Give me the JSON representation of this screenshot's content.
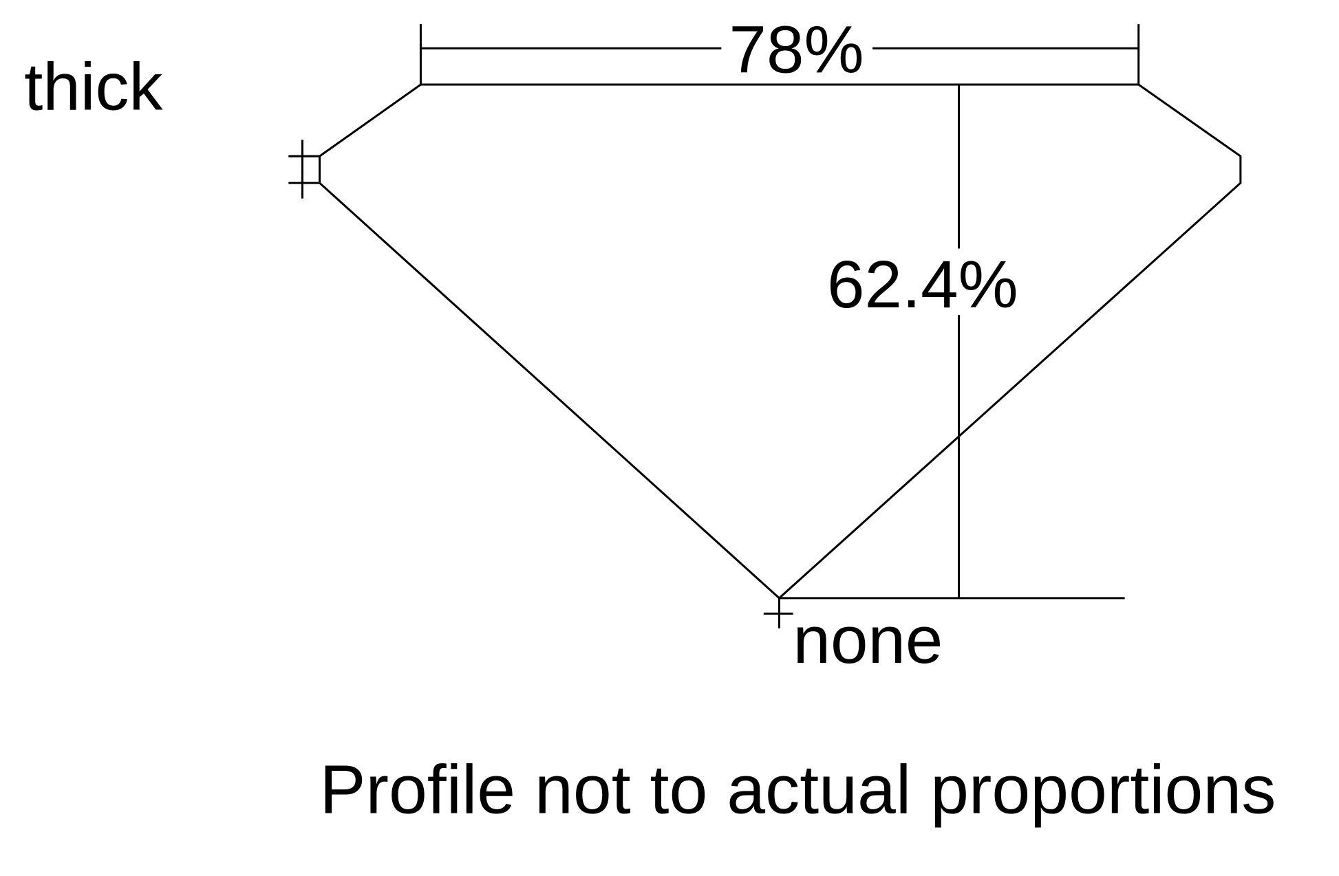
{
  "labels": {
    "girdle": "thick",
    "culet": "none",
    "table_width": "78%",
    "total_depth": "62.4%",
    "note": "Profile not to actual proportions"
  },
  "colors": {
    "line": "#000000",
    "background": "#ffffff"
  }
}
